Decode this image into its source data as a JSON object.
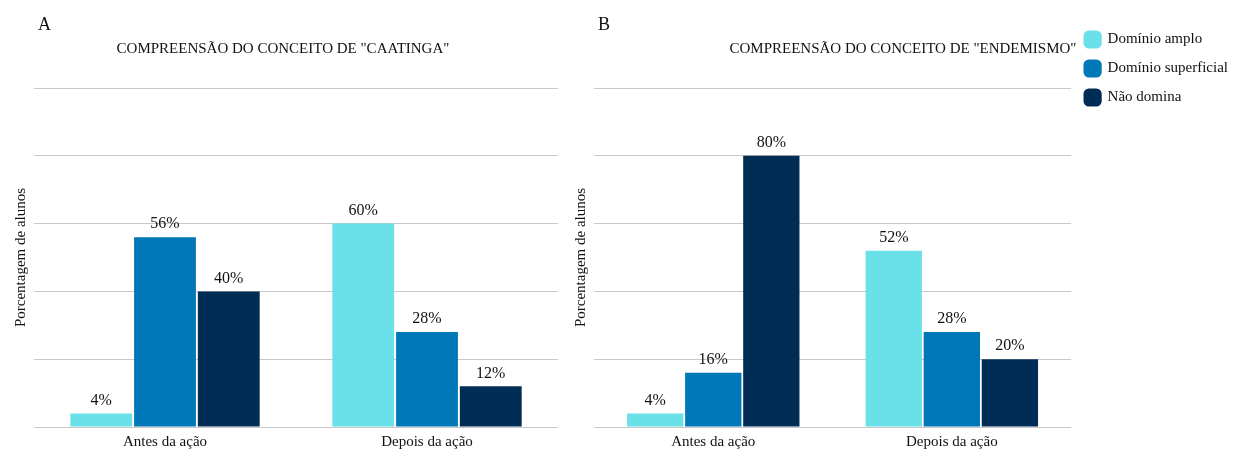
{
  "chart_data": [
    {
      "type": "bar",
      "title": "COMPREENSÃO DO CONCEITO DE \"CAATINGA\"",
      "ylabel": "Porcentagem de alunos",
      "annotations": [
        "A"
      ],
      "categories": [
        "Antes da ação",
        "Depois da ação"
      ],
      "series": [
        {
          "color": "#6ae0e8",
          "values": [
            4,
            60
          ],
          "value_labels": [
            "4%",
            "60%"
          ]
        },
        {
          "color": "#0077b6",
          "values": [
            56,
            28
          ],
          "value_labels": [
            "56%",
            "28%"
          ]
        },
        {
          "color": "#002d55",
          "values": [
            40,
            12
          ],
          "value_labels": [
            "40%",
            "12%"
          ]
        }
      ],
      "ylim": [
        0,
        100
      ],
      "yticks": [
        {
          "value": 0,
          "label": null
        },
        {
          "value": 20,
          "label": null
        },
        {
          "value": 40,
          "label": null
        },
        {
          "value": 60,
          "label": null
        },
        {
          "value": 80,
          "label": null
        },
        {
          "value": 100,
          "label": null
        }
      ],
      "grid": "y",
      "tick_labels": "x",
      "legend": false
    },
    {
      "type": "bar",
      "title": "COMPREENSÃO DO CONCEITO DE \"ENDEMISMO\"",
      "ylabel": "Porcentagem de alunos",
      "annotations": [
        "B"
      ],
      "categories": [
        "Antes da ação",
        "Depois da ação"
      ],
      "series": [
        {
          "name": "Domínio amplo",
          "color": "#6ae0e8",
          "values": [
            4,
            52
          ],
          "value_labels": [
            "4%",
            "52%"
          ]
        },
        {
          "name": "Domínio superficial",
          "color": "#0077b6",
          "values": [
            16,
            28
          ],
          "value_labels": [
            "16%",
            "28%"
          ]
        },
        {
          "name": "Não domina",
          "color": "#002d55",
          "values": [
            80,
            20
          ],
          "value_labels": [
            "80%",
            "20%"
          ]
        }
      ],
      "ylim": [
        0,
        100
      ],
      "yticks": [
        {
          "value": 0,
          "label": null
        },
        {
          "value": 20,
          "label": null
        },
        {
          "value": 40,
          "label": null
        },
        {
          "value": 60,
          "label": null
        },
        {
          "value": 80,
          "label": null
        },
        {
          "value": 100,
          "label": null
        }
      ],
      "grid": "y",
      "tick_labels": "x",
      "legend": "top right"
    }
  ]
}
